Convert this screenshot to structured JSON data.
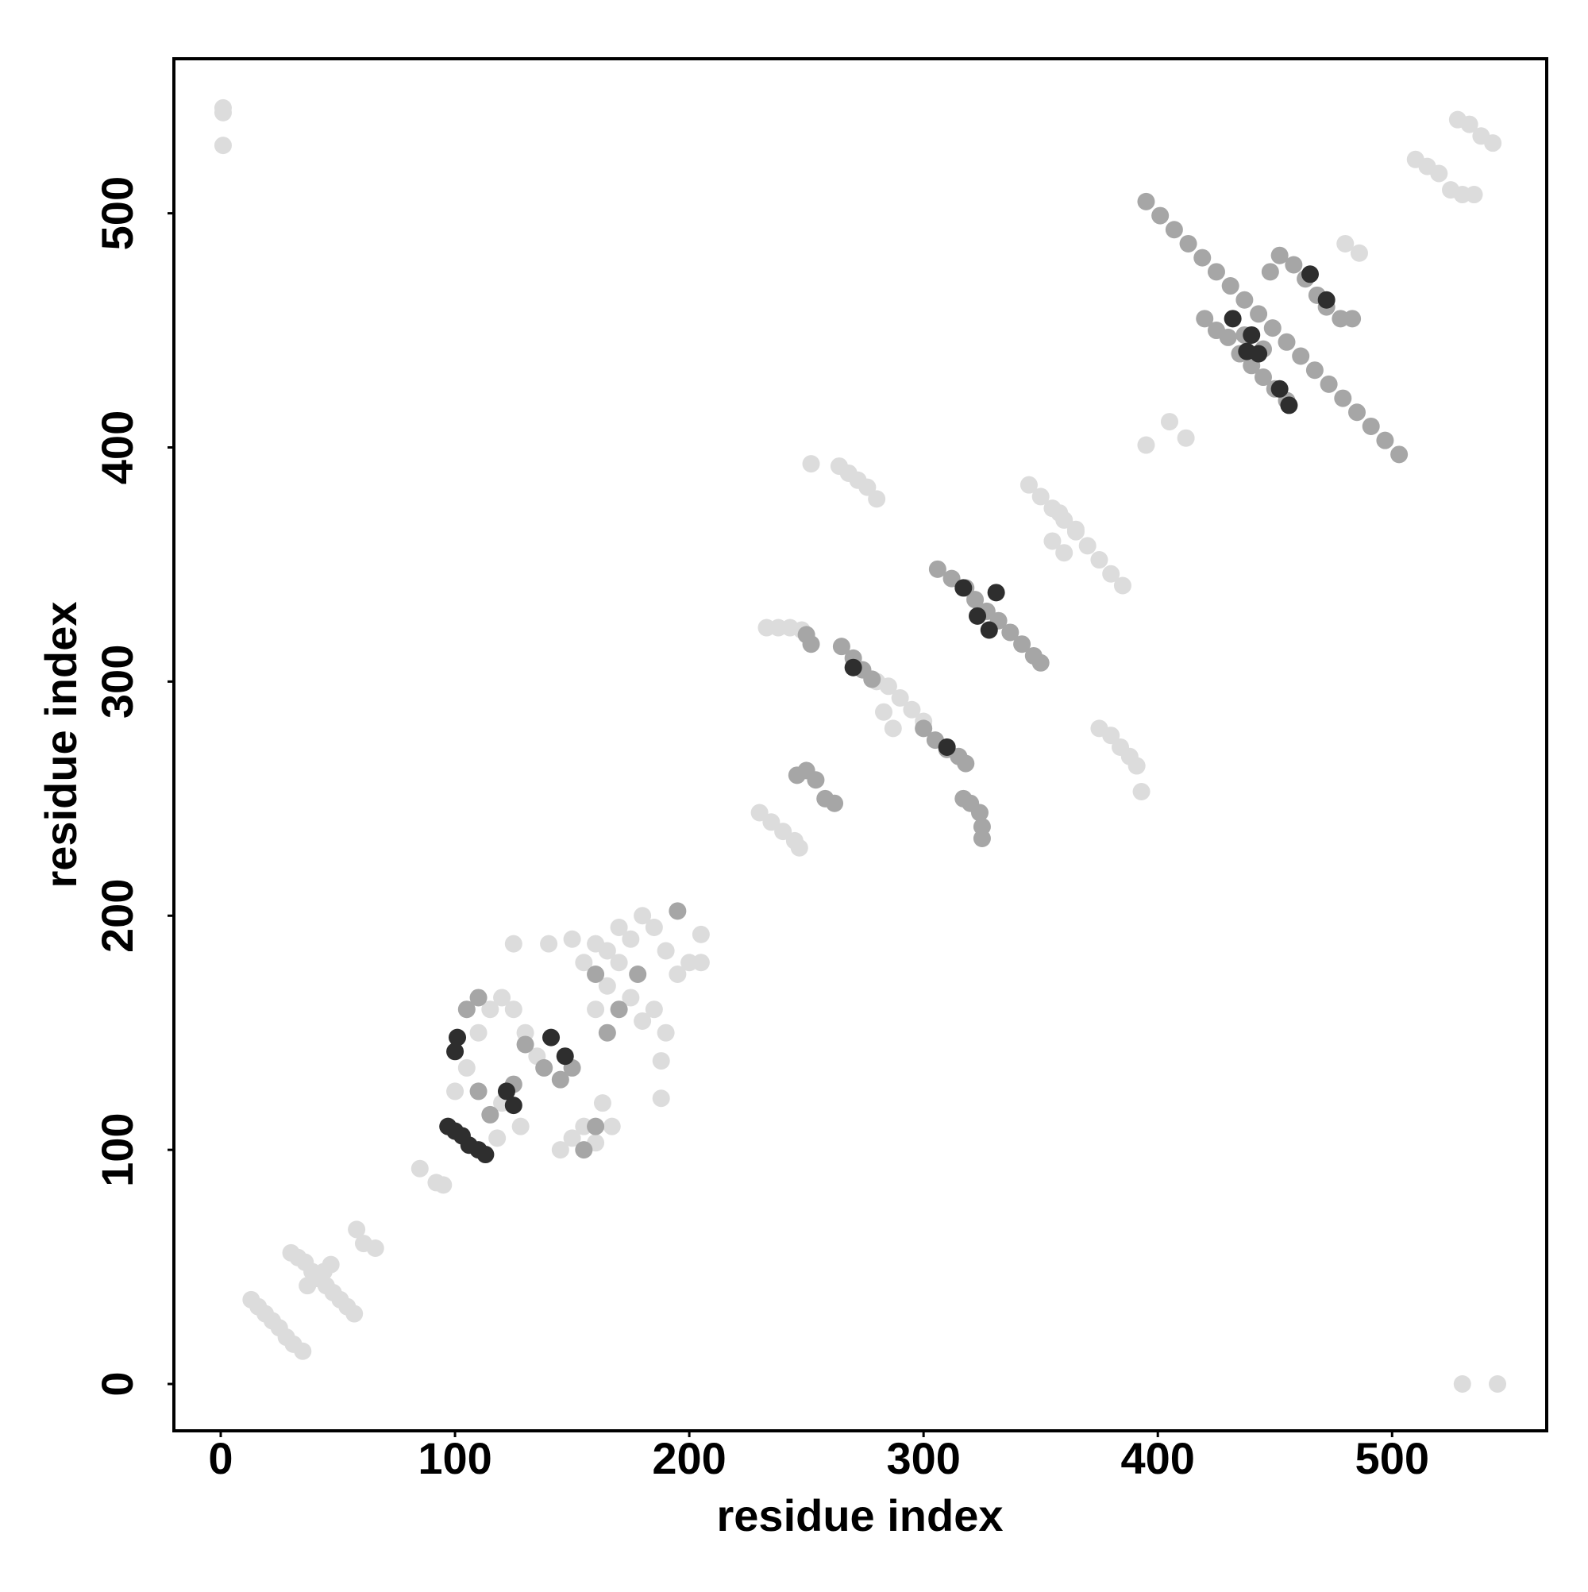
{
  "chart_data": {
    "type": "scatter",
    "x_label": "residue index",
    "y_label": "residue index",
    "xlim": [
      -20,
      566
    ],
    "ylim": [
      -20,
      566
    ],
    "xticks": [
      0,
      100,
      200,
      300,
      400,
      500
    ],
    "yticks": [
      0,
      100,
      200,
      300,
      400,
      500
    ],
    "grid": false,
    "series": [
      {
        "color": "#dcdcdc",
        "x": [
          1,
          1,
          1,
          13,
          16,
          19,
          22,
          25,
          28,
          31,
          35,
          30,
          33,
          36,
          39,
          42,
          45,
          48,
          51,
          54,
          57,
          37,
          40,
          44,
          47,
          58,
          61,
          66,
          85,
          92,
          95,
          530,
          545,
          510,
          515,
          520,
          525,
          530,
          535,
          528,
          533,
          538,
          543,
          230,
          235,
          240,
          245,
          247,
          252,
          264,
          268,
          272,
          276,
          280,
          345,
          350,
          355,
          360,
          365,
          370,
          375,
          380,
          385,
          355,
          360,
          365,
          358,
          280,
          285,
          290,
          295,
          300,
          283,
          287,
          233,
          238,
          243,
          248,
          375,
          380,
          384,
          388,
          391,
          393,
          395,
          405,
          412,
          480,
          486,
          100,
          105,
          110,
          115,
          120,
          125,
          130,
          135,
          128,
          120,
          118,
          145,
          150,
          155,
          160,
          163,
          167,
          160,
          165,
          170,
          175,
          180,
          185,
          190,
          195,
          200,
          205,
          185,
          180,
          190,
          175,
          155,
          160,
          150,
          140,
          125,
          188,
          188,
          205,
          170,
          165
        ],
        "y": [
          545,
          543,
          529,
          36,
          33,
          30,
          27,
          24,
          20,
          17,
          14,
          56,
          54,
          52,
          48,
          45,
          42,
          39,
          36,
          33,
          30,
          42,
          45,
          48,
          51,
          66,
          60,
          58,
          92,
          86,
          85,
          0,
          0,
          523,
          520,
          517,
          510,
          508,
          508,
          540,
          538,
          533,
          530,
          244,
          240,
          236,
          232,
          229,
          393,
          392,
          389,
          386,
          383,
          378,
          384,
          379,
          374,
          369,
          364,
          358,
          352,
          346,
          341,
          360,
          355,
          365,
          372,
          300,
          298,
          293,
          288,
          283,
          287,
          280,
          323,
          323,
          323,
          322,
          280,
          277,
          272,
          268,
          264,
          253,
          401,
          411,
          404,
          487,
          483,
          125,
          135,
          150,
          160,
          165,
          160,
          150,
          140,
          110,
          120,
          105,
          100,
          105,
          110,
          103,
          120,
          110,
          160,
          170,
          180,
          190,
          200,
          195,
          185,
          175,
          180,
          180,
          160,
          155,
          150,
          165,
          180,
          188,
          190,
          188,
          188,
          138,
          122,
          192,
          195,
          185
        ]
      },
      {
        "color": "#a6a6a6",
        "x": [
          395,
          401,
          407,
          413,
          419,
          425,
          431,
          437,
          443,
          449,
          455,
          461,
          467,
          473,
          479,
          485,
          491,
          497,
          503,
          420,
          425,
          430,
          435,
          440,
          445,
          450,
          455,
          437,
          445,
          448,
          452,
          458,
          463,
          468,
          472,
          478,
          483,
          306,
          312,
          318,
          322,
          327,
          332,
          337,
          342,
          347,
          350,
          265,
          270,
          274,
          278,
          300,
          305,
          310,
          315,
          318,
          246,
          250,
          254,
          258,
          262,
          317,
          320,
          324,
          325,
          325,
          250,
          252,
          105,
          110,
          130,
          138,
          145,
          150,
          125,
          115,
          110,
          155,
          160,
          165,
          170,
          178,
          195,
          160
        ],
        "y": [
          505,
          499,
          493,
          487,
          481,
          475,
          469,
          463,
          457,
          451,
          445,
          439,
          433,
          427,
          421,
          415,
          409,
          403,
          397,
          455,
          450,
          447,
          440,
          435,
          430,
          425,
          420,
          448,
          442,
          475,
          482,
          478,
          472,
          465,
          460,
          455,
          455,
          348,
          344,
          340,
          335,
          330,
          326,
          321,
          316,
          311,
          308,
          315,
          310,
          305,
          301,
          280,
          275,
          271,
          268,
          265,
          260,
          262,
          258,
          250,
          248,
          250,
          248,
          244,
          238,
          233,
          320,
          316,
          160,
          165,
          145,
          135,
          130,
          135,
          128,
          115,
          125,
          100,
          110,
          150,
          160,
          175,
          202,
          175
        ]
      },
      {
        "color": "#2e2e2e",
        "x": [
          97,
          100,
          103,
          106,
          110,
          113,
          101,
          100,
          141,
          147,
          122,
          125,
          270,
          310,
          323,
          328,
          317,
          331,
          440,
          443,
          465,
          472,
          432,
          452,
          456,
          438
        ],
        "y": [
          110,
          108,
          106,
          102,
          100,
          98,
          148,
          142,
          148,
          140,
          125,
          119,
          306,
          272,
          328,
          322,
          340,
          338,
          448,
          440,
          474,
          463,
          455,
          425,
          418,
          441
        ]
      }
    ]
  }
}
